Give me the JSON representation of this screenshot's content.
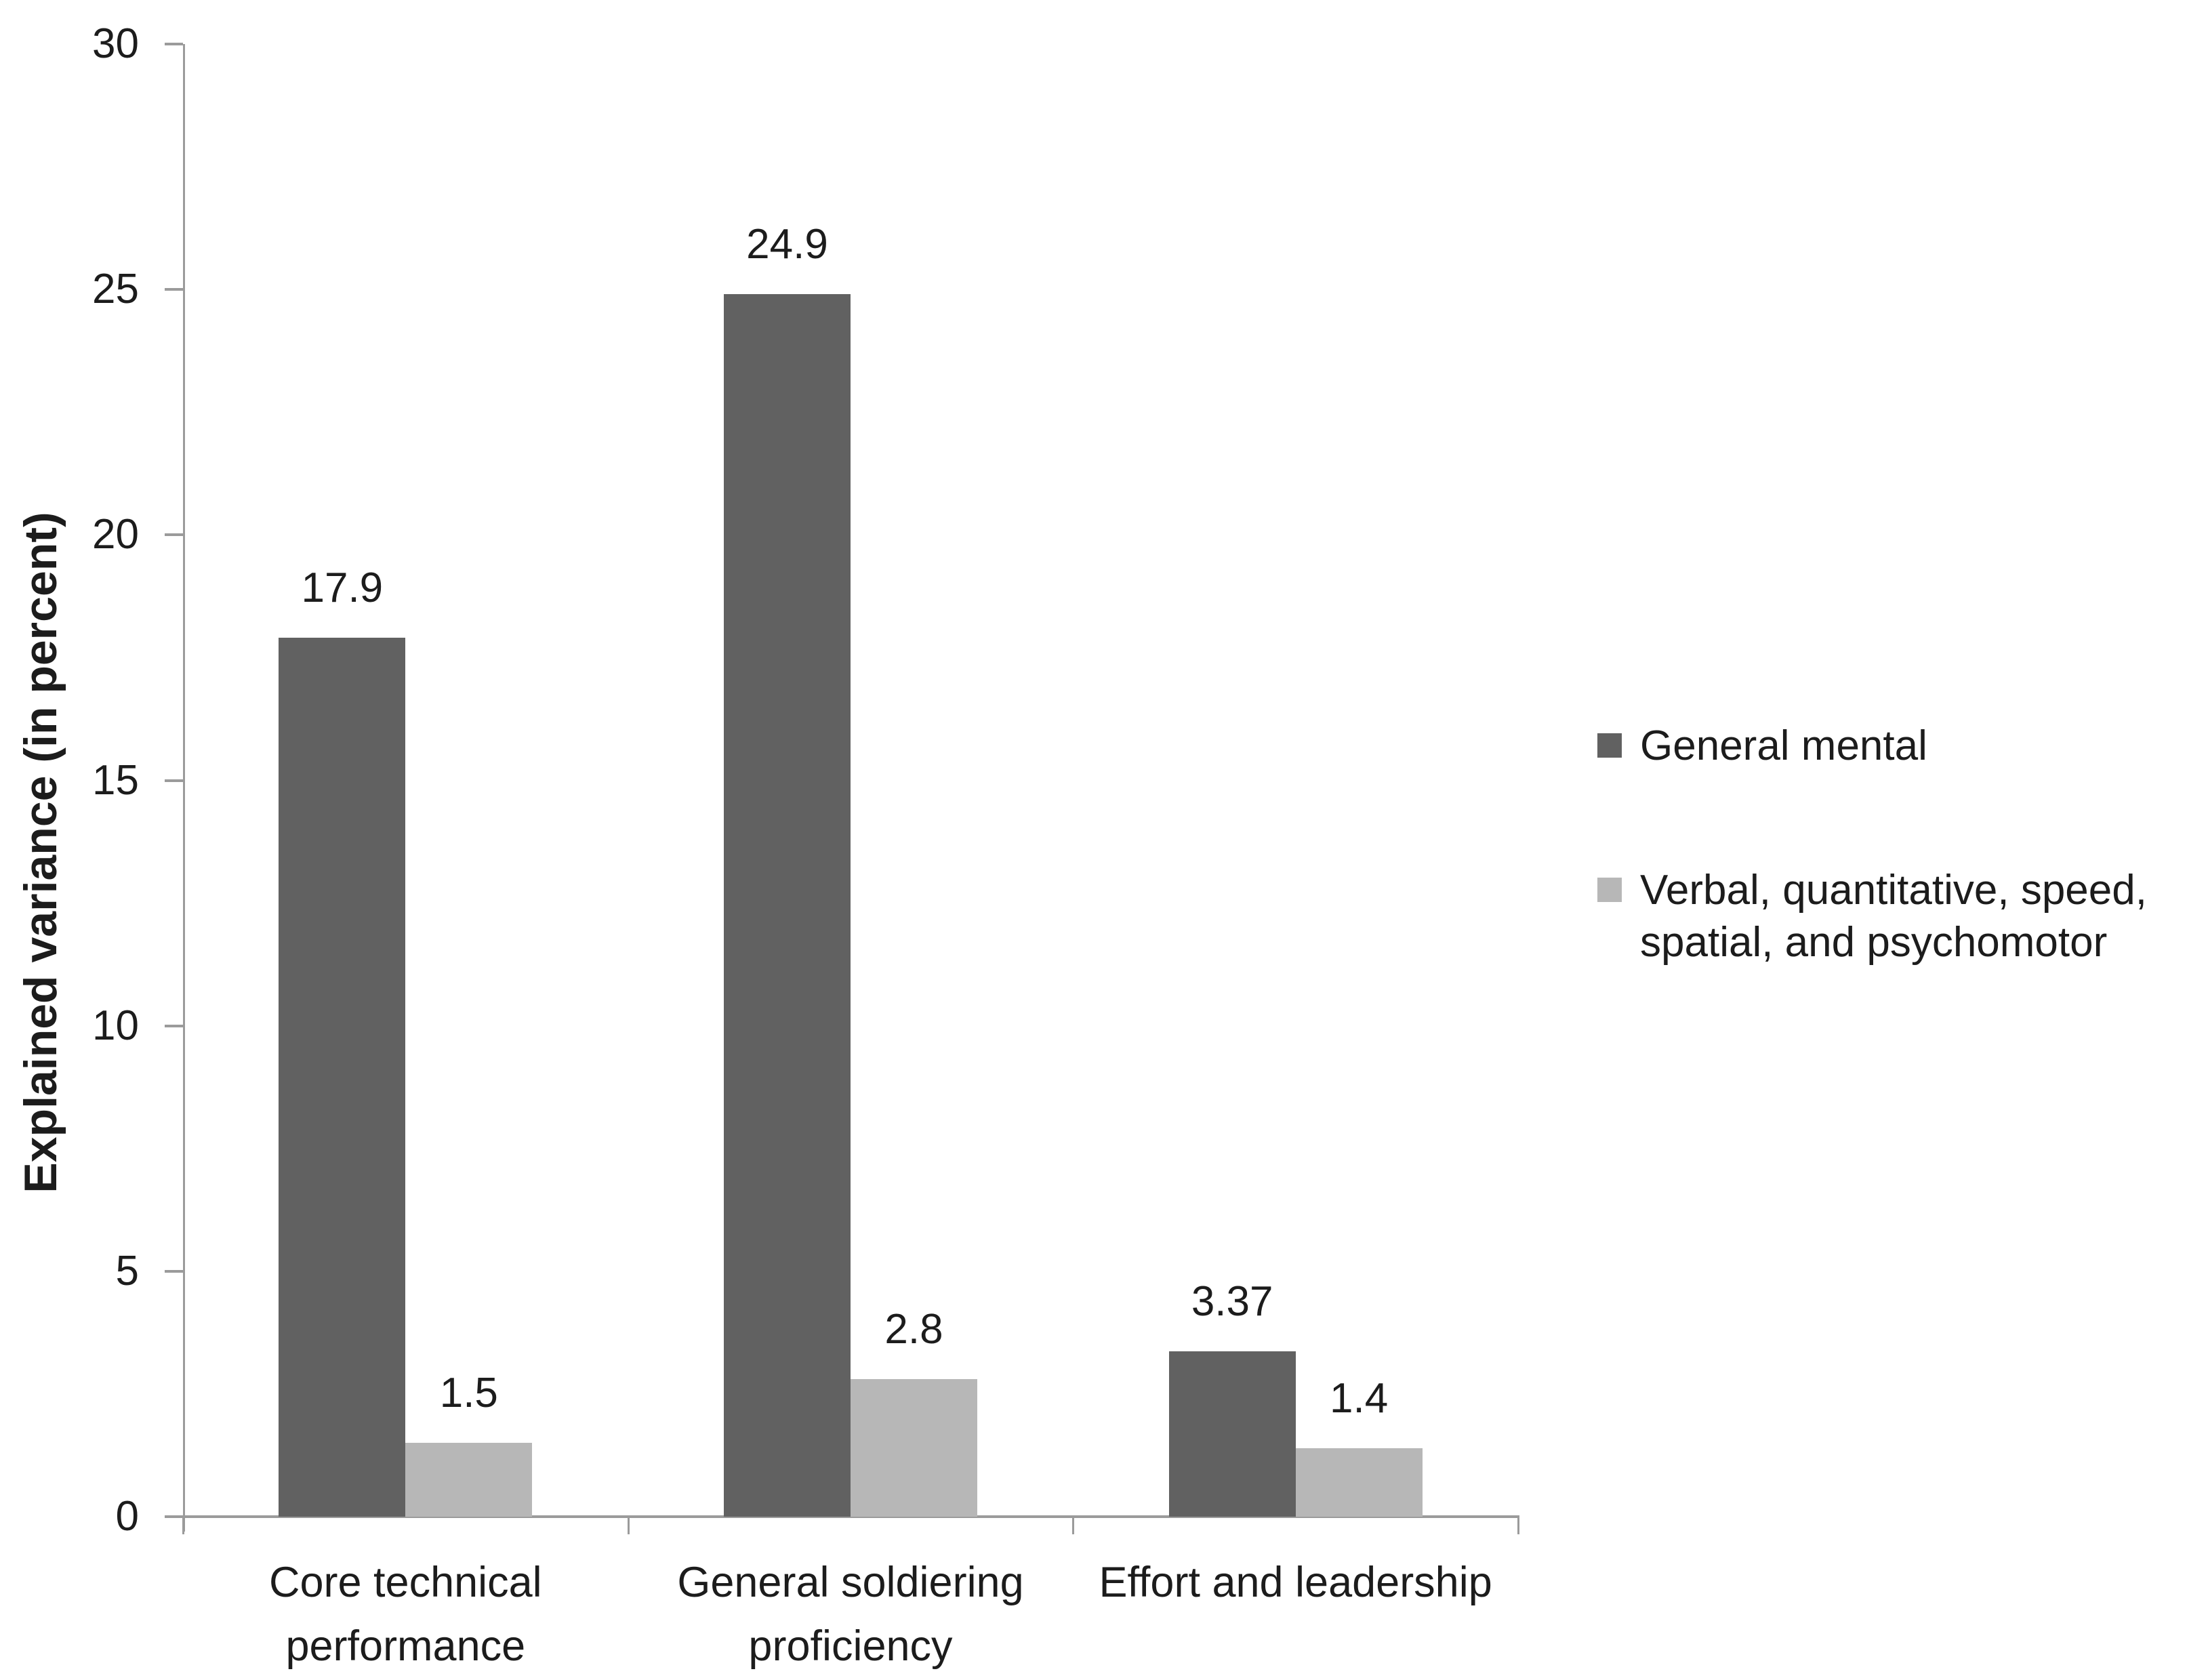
{
  "chart_data": {
    "type": "bar",
    "title": "",
    "categories": [
      "Core technical performance",
      "General soldiering proficiency",
      "Effort and leadership"
    ],
    "category_display": [
      [
        "Core technical",
        "performance"
      ],
      [
        "General soldiering",
        "proficiency"
      ],
      [
        "Effort and leadership"
      ]
    ],
    "series": [
      {
        "name": "General mental",
        "values": [
          17.9,
          24.9,
          3.37
        ],
        "labels": [
          "17.9",
          "24.9",
          "3.37"
        ],
        "color": "#616161"
      },
      {
        "name": "Verbal, quantitative, speed, spatial, and psychomotor",
        "values": [
          1.5,
          2.8,
          1.4
        ],
        "labels": [
          "1.5",
          "2.8",
          "1.4"
        ],
        "color": "#b7b7b7"
      }
    ],
    "xlabel": "",
    "ylabel": "Explained variance (in percent)",
    "ylim": [
      0,
      30
    ],
    "yticks": [
      0,
      5,
      10,
      15,
      20,
      25,
      30
    ],
    "grid": false,
    "legend_position": "right",
    "colors": {
      "axis": "#9b9b9b",
      "text": "#1c1c1c",
      "background": "#ffffff"
    }
  }
}
